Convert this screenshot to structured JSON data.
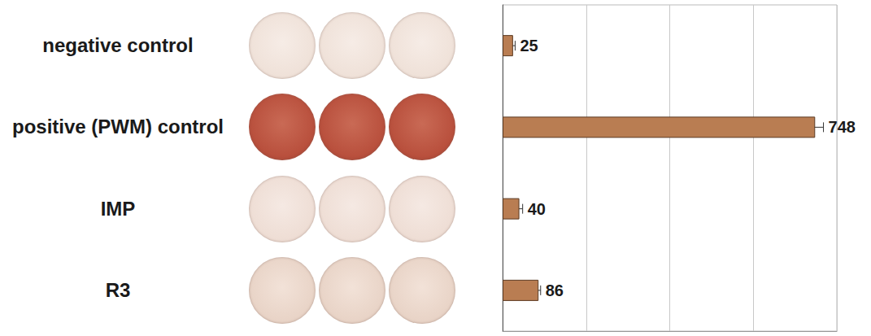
{
  "chart_data": {
    "type": "bar",
    "orientation": "horizontal",
    "categories": [
      "negative control",
      "positive (PWM) control",
      "IMP",
      "R3"
    ],
    "values": [
      25,
      748,
      40,
      86
    ],
    "errors": [
      5,
      20,
      8,
      5
    ],
    "color": "#b97d52",
    "xlim": [
      0,
      800
    ],
    "xticks": [
      0,
      200,
      400,
      600,
      800
    ],
    "grid": true,
    "data_labels": true,
    "tick_labels": false
  }
}
